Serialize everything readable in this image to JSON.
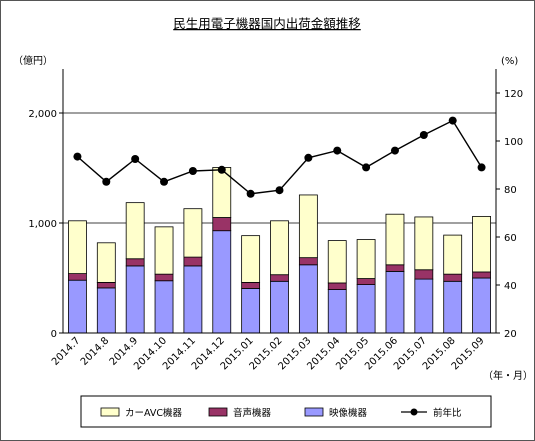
{
  "chart_data": {
    "type": "bar",
    "title": "民生用電子機器国内出荷金額推移",
    "y_left_unit": "（億円）",
    "y_right_unit": "(%)",
    "x_unit": "（年・月）",
    "categories": [
      "2014.7",
      "2014.8",
      "2014.9",
      "2014.10",
      "2014.11",
      "2014.12",
      "2015.01",
      "2015.02",
      "2015.03",
      "2015.04",
      "2015.05",
      "2015.06",
      "2015.07",
      "2015.08",
      "2015.09"
    ],
    "ylim_left": [
      0,
      2400
    ],
    "yticks_left": [
      "0",
      "1,000",
      "2,000"
    ],
    "ylim_right": [
      20,
      130
    ],
    "yticks_right": [
      "20",
      "40",
      "60",
      "80",
      "100",
      "120"
    ],
    "series": [
      {
        "name": "映像機器",
        "kind": "stacked-bar",
        "color": "#9999ff",
        "values": [
          480,
          410,
          610,
          475,
          610,
          930,
          405,
          470,
          620,
          395,
          440,
          560,
          490,
          470,
          500
        ]
      },
      {
        "name": "音声機器",
        "kind": "stacked-bar",
        "color": "#993366",
        "values": [
          60,
          50,
          65,
          60,
          80,
          120,
          55,
          60,
          65,
          60,
          55,
          60,
          85,
          65,
          55
        ]
      },
      {
        "name": "カーAVC機器",
        "kind": "stacked-bar",
        "color": "#ffffcc",
        "values": [
          480,
          360,
          510,
          430,
          440,
          455,
          425,
          490,
          570,
          385,
          355,
          460,
          480,
          355,
          505
        ]
      },
      {
        "name": "前年比",
        "kind": "line",
        "axis": "right",
        "color": "#000000",
        "values": [
          93.5,
          83,
          92.5,
          83,
          87.5,
          88,
          78,
          79.5,
          93,
          96,
          89,
          96,
          102.5,
          108.5,
          89
        ]
      }
    ],
    "legend": {
      "placement": "bottom",
      "order": [
        "カーAVC機器",
        "音声機器",
        "映像機器",
        "前年比"
      ]
    },
    "grid": "horizontal-left-axis"
  }
}
